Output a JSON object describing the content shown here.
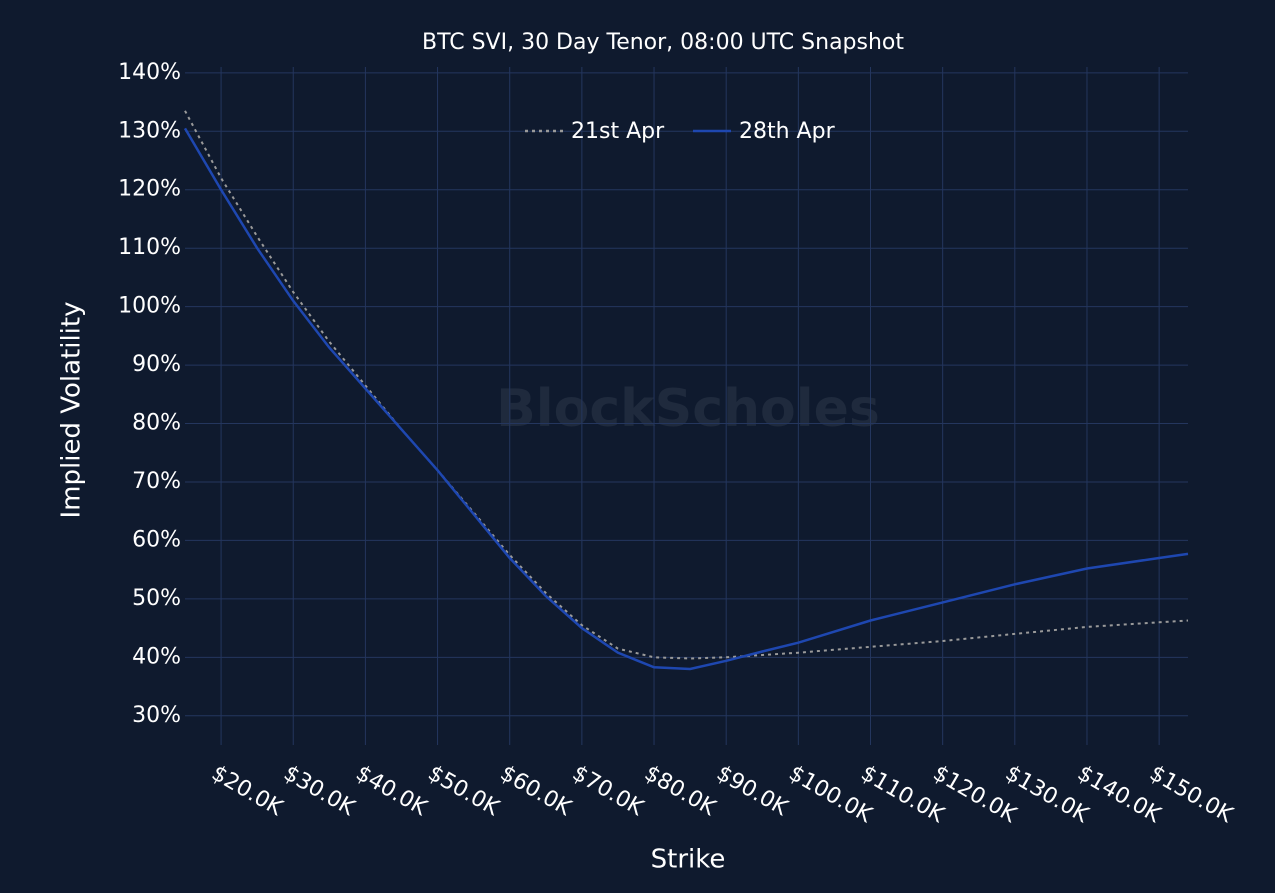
{
  "chart_data": {
    "type": "line",
    "title": "BTC SVI, 30 Day Tenor, 08:00 UTC Snapshot",
    "watermark": "BlockScholes",
    "x_label": "Strike",
    "y_label": "Implied Volatility",
    "x": [
      15000,
      20000,
      25000,
      30000,
      35000,
      40000,
      45000,
      50000,
      55000,
      60000,
      65000,
      70000,
      75000,
      80000,
      85000,
      90000,
      95000,
      100000,
      110000,
      120000,
      130000,
      140000,
      150000,
      154000
    ],
    "series": [
      {
        "name": "21st Apr",
        "color": "#9a9a9a",
        "dash": true,
        "values": [
          133.5,
          122,
          112,
          102.5,
          94,
          86.5,
          79,
          72,
          64.8,
          57.5,
          51,
          45.5,
          41.5,
          40,
          39.8,
          40,
          40.4,
          40.8,
          41.8,
          42.8,
          44,
          45.2,
          46,
          46.3
        ]
      },
      {
        "name": "28th Apr",
        "color": "#1e47b0",
        "dash": false,
        "values": [
          130.5,
          120,
          110,
          101,
          93,
          86,
          79,
          72,
          64.5,
          57,
          50.5,
          45,
          40.8,
          38.3,
          38,
          39.4,
          41,
          42.5,
          46.3,
          49.4,
          52.5,
          55.2,
          57,
          57.7
        ]
      }
    ],
    "xlim": [
      15000,
      154000
    ],
    "ylim": [
      25,
      141
    ],
    "xticks": [
      {
        "value": 20000,
        "label": "$20.0K"
      },
      {
        "value": 30000,
        "label": "$30.0K"
      },
      {
        "value": 40000,
        "label": "$40.0K"
      },
      {
        "value": 50000,
        "label": "$50.0K"
      },
      {
        "value": 60000,
        "label": "$60.0K"
      },
      {
        "value": 70000,
        "label": "$70.0K"
      },
      {
        "value": 80000,
        "label": "$80.0K"
      },
      {
        "value": 90000,
        "label": "$90.0K"
      },
      {
        "value": 100000,
        "label": "$100.0K"
      },
      {
        "value": 110000,
        "label": "$110.0K"
      },
      {
        "value": 120000,
        "label": "$120.0K"
      },
      {
        "value": 130000,
        "label": "$130.0K"
      },
      {
        "value": 140000,
        "label": "$140.0K"
      },
      {
        "value": 150000,
        "label": "$150.0K"
      }
    ],
    "yticks": [
      {
        "value": 30,
        "label": "30%"
      },
      {
        "value": 40,
        "label": "40%"
      },
      {
        "value": 50,
        "label": "50%"
      },
      {
        "value": 60,
        "label": "60%"
      },
      {
        "value": 70,
        "label": "70%"
      },
      {
        "value": 80,
        "label": "80%"
      },
      {
        "value": 90,
        "label": "90%"
      },
      {
        "value": 100,
        "label": "100%"
      },
      {
        "value": 110,
        "label": "110%"
      },
      {
        "value": 120,
        "label": "120%"
      },
      {
        "value": 130,
        "label": "130%"
      },
      {
        "value": 140,
        "label": "140%"
      }
    ],
    "grid": true,
    "legend": "top"
  }
}
